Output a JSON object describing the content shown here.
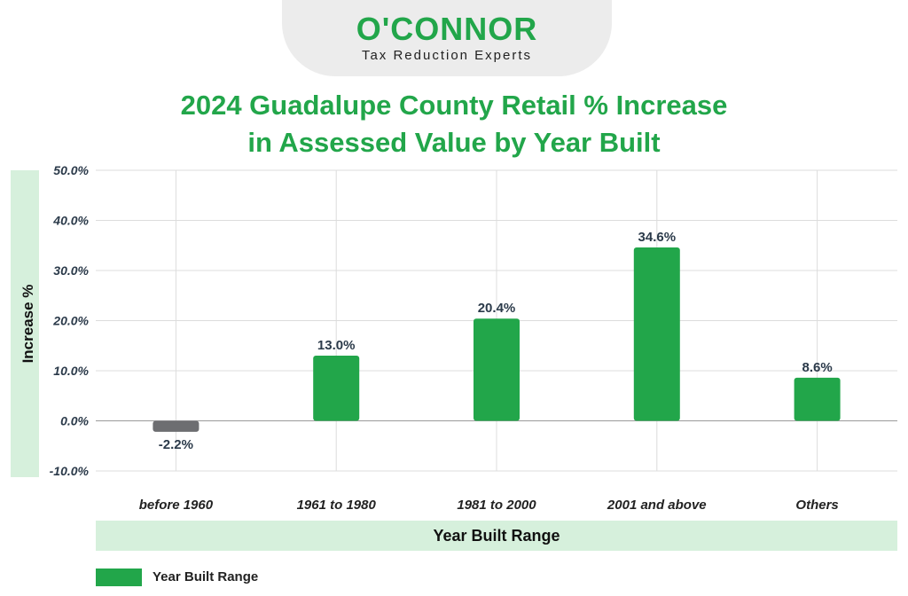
{
  "logo": {
    "brand": "O'CONNOR",
    "tagline": "Tax Reduction Experts"
  },
  "chart_data": {
    "type": "bar",
    "title_line1": "2024 Guadalupe County Retail % Increase",
    "title_line2": "in Assessed Value by Year Built",
    "xlabel": "Year Built Range",
    "ylabel": "Increase %",
    "ylim": [
      -10,
      50
    ],
    "yticks": [
      50,
      40,
      30,
      20,
      10,
      0,
      -10
    ],
    "ytick_labels": [
      "50.0%",
      "40.0%",
      "30.0%",
      "20.0%",
      "10.0%",
      "0.0%",
      "-10.0%"
    ],
    "categories": [
      "before 1960",
      "1961 to 1980",
      "1981 to 2000",
      "2001 and above",
      "Others"
    ],
    "values": [
      -2.2,
      13.0,
      20.4,
      34.6,
      8.6
    ],
    "value_labels": [
      "-2.2%",
      "13.0%",
      "20.4%",
      "34.6%",
      "8.6%"
    ],
    "series": [
      {
        "name": "Year Built Range",
        "values": [
          -2.2,
          13.0,
          20.4,
          34.6,
          8.6
        ]
      }
    ],
    "colors": {
      "positive": "#22a64a",
      "negative": "#6d6e71",
      "grid": "#dcdcdc"
    },
    "grid": true,
    "legend_position": "bottom-left"
  }
}
